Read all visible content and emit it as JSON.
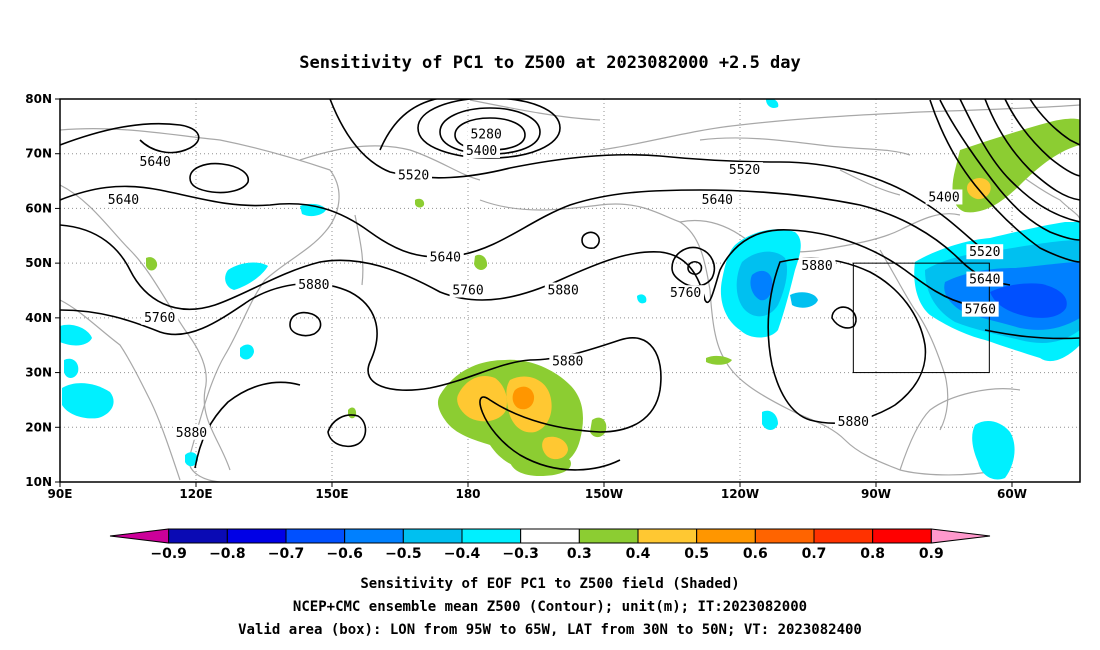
{
  "title": "Sensitivity of PC1 to Z500 at 2023082000 +2.5 day",
  "map": {
    "lat_ticks": [
      {
        "value": 80,
        "label": "80N"
      },
      {
        "value": 70,
        "label": "70N"
      },
      {
        "value": 60,
        "label": "60N"
      },
      {
        "value": 50,
        "label": "50N"
      },
      {
        "value": 40,
        "label": "40N"
      },
      {
        "value": 30,
        "label": "30N"
      },
      {
        "value": 20,
        "label": "20N"
      },
      {
        "value": 10,
        "label": "10N"
      }
    ],
    "lon_ticks": [
      {
        "value": 90,
        "label": "90E"
      },
      {
        "value": 120,
        "label": "120E"
      },
      {
        "value": 150,
        "label": "150E"
      },
      {
        "value": 180,
        "label": "180"
      },
      {
        "value": 210,
        "label": "150W"
      },
      {
        "value": 240,
        "label": "120W"
      },
      {
        "value": 270,
        "label": "90W"
      },
      {
        "value": 300,
        "label": "60W"
      }
    ],
    "contour_labels": [
      {
        "text": "5640",
        "lon": 111,
        "lat": 68.5
      },
      {
        "text": "5640",
        "lon": 104,
        "lat": 61.5
      },
      {
        "text": "5280",
        "lon": 184,
        "lat": 73.5
      },
      {
        "text": "5400",
        "lon": 183,
        "lat": 70.5
      },
      {
        "text": "5520",
        "lon": 168,
        "lat": 66
      },
      {
        "text": "5520",
        "lon": 241,
        "lat": 67
      },
      {
        "text": "5640",
        "lon": 235,
        "lat": 61.5
      },
      {
        "text": "5400",
        "lon": 285,
        "lat": 62
      },
      {
        "text": "5520",
        "lon": 294,
        "lat": 52
      },
      {
        "text": "5640",
        "lon": 294,
        "lat": 47
      },
      {
        "text": "5760",
        "lon": 293,
        "lat": 41.5
      },
      {
        "text": "5640",
        "lon": 175,
        "lat": 51
      },
      {
        "text": "5880",
        "lon": 146,
        "lat": 46
      },
      {
        "text": "5760",
        "lon": 112,
        "lat": 40
      },
      {
        "text": "5760",
        "lon": 180,
        "lat": 45
      },
      {
        "text": "5880",
        "lon": 201,
        "lat": 45
      },
      {
        "text": "5760",
        "lon": 228,
        "lat": 44.5
      },
      {
        "text": "5880",
        "lon": 257,
        "lat": 49.5
      },
      {
        "text": "5880",
        "lon": 202,
        "lat": 32
      },
      {
        "text": "5880",
        "lon": 119,
        "lat": 19
      },
      {
        "text": "5880",
        "lon": 265,
        "lat": 21
      }
    ],
    "valid_box": {
      "lon_min": 265,
      "lon_max": 295,
      "lat_min": 30,
      "lat_max": 50
    },
    "colors": {
      "cyan": "#00f0ff",
      "light_blue": "#00c0f0",
      "mid_blue": "#0080ff",
      "blue": "#0050ff",
      "green": "#8ccd32",
      "gold": "#ffc832",
      "orange": "#ff9600",
      "coast": "#a8a8a8",
      "grid": "#909090"
    }
  },
  "colorbar": {
    "colors": [
      "#cc0099",
      "#0a0ab4",
      "#0000e6",
      "#0050ff",
      "#0080ff",
      "#00c0f0",
      "#00f0ff",
      "#ffffff",
      "#8ccd32",
      "#ffc832",
      "#ff9600",
      "#ff6400",
      "#ff3200",
      "#ff0000",
      "#ff99cc"
    ],
    "labels": [
      "-0.9",
      "-0.8",
      "-0.7",
      "-0.6",
      "-0.5",
      "-0.4",
      "-0.3",
      "0.3",
      "0.4",
      "0.5",
      "0.6",
      "0.7",
      "0.8",
      "0.9"
    ]
  },
  "caption": {
    "line1": "Sensitivity of EOF PC1 to Z500 field (Shaded)",
    "line2": "NCEP+CMC ensemble mean Z500 (Contour); unit(m); IT:2023082000",
    "line3": "Valid area (box): LON from 95W to 65W, LAT from 30N to 50N; VT: 2023082400"
  }
}
